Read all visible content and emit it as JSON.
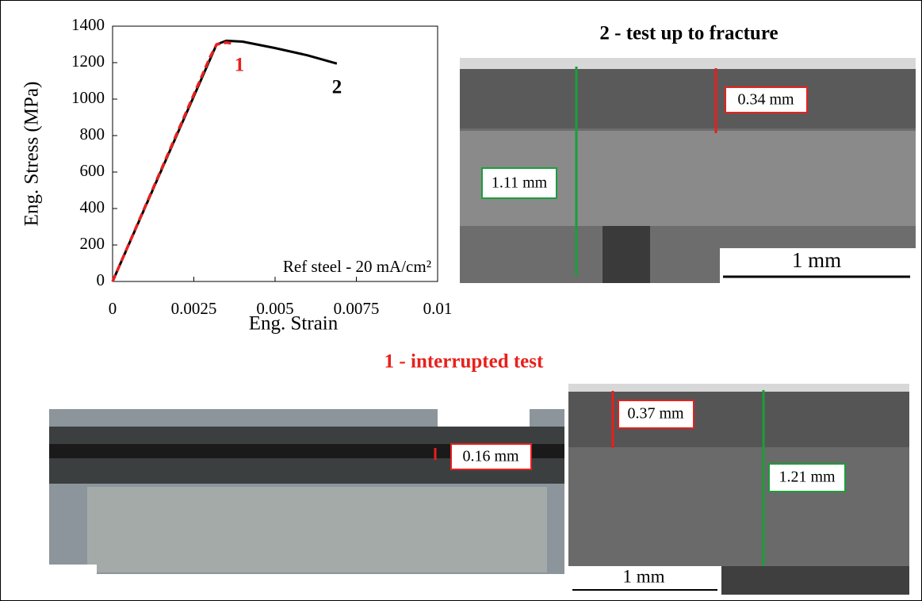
{
  "chart_data": {
    "type": "line",
    "xlabel": "Eng. Strain",
    "ylabel": "Eng. Stress (MPa)",
    "xlim": [
      0,
      0.01
    ],
    "xticks": [
      0,
      0.0025,
      0.005,
      0.0075,
      0.01
    ],
    "ylim": [
      0,
      1400
    ],
    "yticks": [
      0,
      200,
      400,
      600,
      800,
      1000,
      1200,
      1400
    ],
    "series": [
      {
        "color": "#000000",
        "dashed": false,
        "x": [
          0,
          0.0032,
          0.0035,
          0.004,
          0.005,
          0.006,
          0.0069
        ],
        "values": [
          0,
          1300,
          1320,
          1315,
          1280,
          1240,
          1195
        ]
      },
      {
        "color": "#e8201c",
        "dashed": true,
        "x": [
          0,
          0.001,
          0.002,
          0.003,
          0.0032,
          0.0035,
          0.0037
        ],
        "values": [
          0,
          410,
          820,
          1230,
          1300,
          1310,
          1305
        ]
      }
    ],
    "annotations": [
      "1",
      "2",
      "Ref steel - 20 mA/cm²"
    ]
  },
  "panels": {
    "fracture": {
      "title": "2 - test up to fracture",
      "labels": [
        "0.34 mm",
        "1.11 mm"
      ],
      "scale_bar": "1 mm"
    },
    "interrupted": {
      "title": "1 - interrupted test",
      "photo_label": "0.16 mm",
      "sem_labels": [
        "0.37 mm",
        "1.21 mm"
      ],
      "scale_bar": "1 mm"
    }
  }
}
